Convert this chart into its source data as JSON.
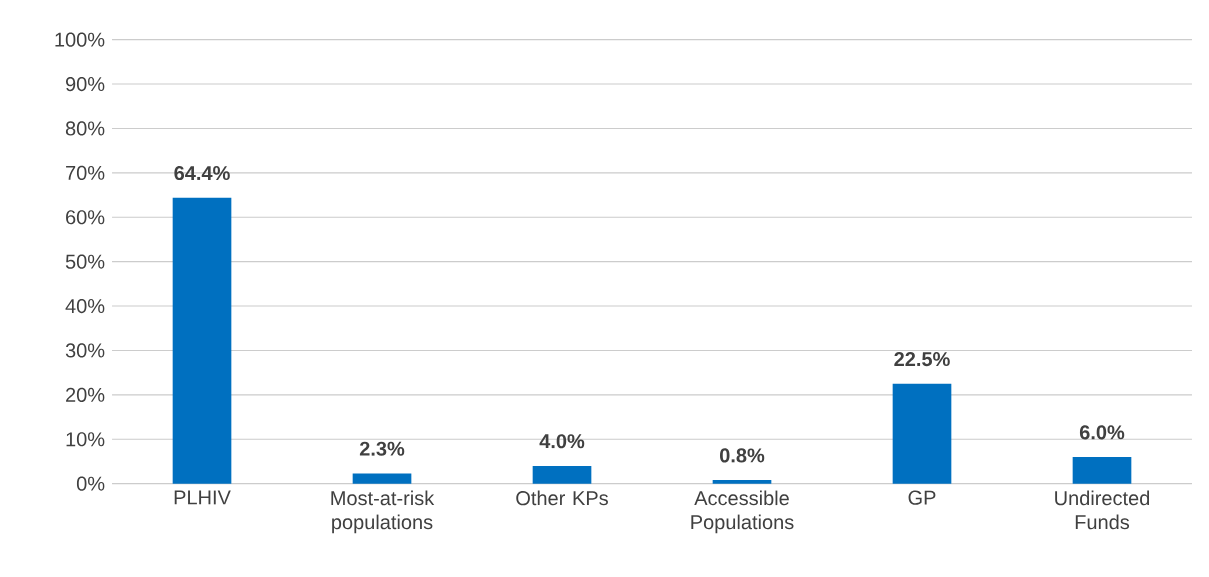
{
  "chart_data": {
    "type": "bar",
    "categories": [
      "PLHIV",
      "Most-at-risk populations",
      "Other KPs",
      "Accessible Populations",
      "GP",
      "Undirected Funds"
    ],
    "values": [
      64.4,
      2.3,
      4.0,
      0.8,
      22.5,
      6.0
    ],
    "value_labels": [
      "64.4%",
      "2.3%",
      "4.0%",
      "0.8%",
      "22.5%",
      "6.0%"
    ],
    "color": "#0070c0",
    "ylim": [
      0,
      100
    ],
    "yticks": [
      {
        "value": 0,
        "label": "0%"
      },
      {
        "value": 10,
        "label": "10%"
      },
      {
        "value": 20,
        "label": "20%"
      },
      {
        "value": 30,
        "label": "30%"
      },
      {
        "value": 40,
        "label": "40%"
      },
      {
        "value": 50,
        "label": "50%"
      },
      {
        "value": 60,
        "label": "60%"
      },
      {
        "value": 70,
        "label": "70%"
      },
      {
        "value": 80,
        "label": "80%"
      },
      {
        "value": 90,
        "label": "90%"
      },
      {
        "value": 100,
        "label": "100%"
      }
    ],
    "grid": "y"
  }
}
